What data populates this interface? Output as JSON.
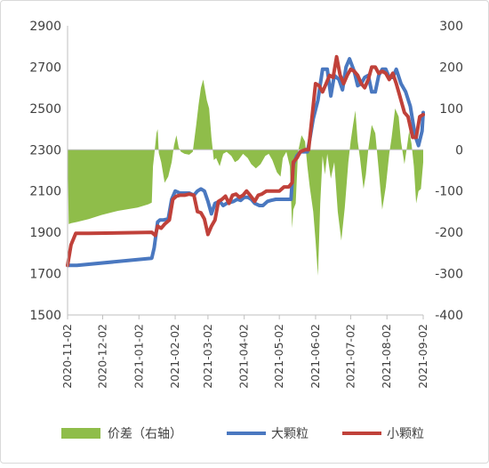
{
  "chart_data": {
    "type": "line",
    "title": "",
    "xlabel": "",
    "ylabel": "",
    "x_ticks": [
      "2020-11-02",
      "2020-12-02",
      "2021-01-02",
      "2021-02-02",
      "2021-03-02",
      "2021-04-02",
      "2021-05-02",
      "2021-06-02",
      "2021-07-02",
      "2021-08-02",
      "2021-09-02"
    ],
    "y_left": {
      "range": [
        1500,
        2900
      ],
      "ticks": [
        "1500",
        "1700",
        "1900",
        "2100",
        "2300",
        "2500",
        "2700",
        "2900"
      ]
    },
    "y_right": {
      "range": [
        -400,
        300
      ],
      "ticks": [
        "-400",
        "-300",
        "-200",
        "-100",
        "0",
        "100",
        "200",
        "300"
      ]
    },
    "grid": false,
    "legend_position": "bottom",
    "series": [
      {
        "name": "价差（右轴）",
        "type": "area",
        "axis": "right",
        "color": "#8fbd4a",
        "points": [
          [
            "2020-11-02",
            0
          ],
          [
            "2020-11-03",
            -180
          ],
          [
            "2020-11-05",
            -178
          ],
          [
            "2020-11-10",
            -175
          ],
          [
            "2020-11-20",
            -168
          ],
          [
            "2020-12-01",
            -158
          ],
          [
            "2020-12-15",
            -148
          ],
          [
            "2021-01-01",
            -140
          ],
          [
            "2021-01-10",
            -132
          ],
          [
            "2021-01-13",
            -128
          ],
          [
            "2021-01-14",
            -40
          ],
          [
            "2021-01-15",
            -15
          ],
          [
            "2021-01-17",
            40
          ],
          [
            "2021-01-18",
            50
          ],
          [
            "2021-01-19",
            -8
          ],
          [
            "2021-01-21",
            -30
          ],
          [
            "2021-01-24",
            -80
          ],
          [
            "2021-01-27",
            -65
          ],
          [
            "2021-01-30",
            -30
          ],
          [
            "2021-02-01",
            10
          ],
          [
            "2021-02-03",
            35
          ],
          [
            "2021-02-05",
            5
          ],
          [
            "2021-02-07",
            -5
          ],
          [
            "2021-02-10",
            -10
          ],
          [
            "2021-02-14",
            -12
          ],
          [
            "2021-02-17",
            -5
          ],
          [
            "2021-02-20",
            60
          ],
          [
            "2021-02-22",
            110
          ],
          [
            "2021-02-24",
            150
          ],
          [
            "2021-02-26",
            170
          ],
          [
            "2021-03-01",
            120
          ],
          [
            "2021-03-03",
            100
          ],
          [
            "2021-03-05",
            30
          ],
          [
            "2021-03-07",
            -25
          ],
          [
            "2021-03-09",
            -20
          ],
          [
            "2021-03-12",
            -40
          ],
          [
            "2021-03-15",
            -10
          ],
          [
            "2021-03-18",
            -5
          ],
          [
            "2021-03-22",
            -15
          ],
          [
            "2021-03-25",
            -30
          ],
          [
            "2021-03-28",
            -25
          ],
          [
            "2021-04-01",
            -10
          ],
          [
            "2021-04-05",
            -20
          ],
          [
            "2021-04-08",
            -35
          ],
          [
            "2021-04-12",
            -45
          ],
          [
            "2021-04-16",
            -35
          ],
          [
            "2021-04-20",
            -15
          ],
          [
            "2021-04-23",
            -10
          ],
          [
            "2021-04-26",
            -25
          ],
          [
            "2021-04-30",
            -55
          ],
          [
            "2021-05-03",
            -65
          ],
          [
            "2021-05-05",
            -20
          ],
          [
            "2021-05-08",
            -5
          ],
          [
            "2021-05-11",
            -40
          ],
          [
            "2021-05-13",
            -190
          ],
          [
            "2021-05-14",
            -145
          ],
          [
            "2021-05-16",
            -130
          ],
          [
            "2021-05-18",
            -5
          ],
          [
            "2021-05-21",
            35
          ],
          [
            "2021-05-24",
            20
          ],
          [
            "2021-05-26",
            -40
          ],
          [
            "2021-05-28",
            -90
          ],
          [
            "2021-05-31",
            -150
          ],
          [
            "2021-06-02",
            -220
          ],
          [
            "2021-06-04",
            -305
          ],
          [
            "2021-06-06",
            -130
          ],
          [
            "2021-06-08",
            -15
          ],
          [
            "2021-06-10",
            -60
          ],
          [
            "2021-06-12",
            -10
          ],
          [
            "2021-06-15",
            -70
          ],
          [
            "2021-06-18",
            -30
          ],
          [
            "2021-06-21",
            -150
          ],
          [
            "2021-06-24",
            -220
          ],
          [
            "2021-06-27",
            -140
          ],
          [
            "2021-06-30",
            -30
          ],
          [
            "2021-07-02",
            20
          ],
          [
            "2021-07-04",
            60
          ],
          [
            "2021-07-06",
            95
          ],
          [
            "2021-07-08",
            20
          ],
          [
            "2021-07-10",
            -20
          ],
          [
            "2021-07-13",
            -95
          ],
          [
            "2021-07-15",
            -60
          ],
          [
            "2021-07-17",
            0
          ],
          [
            "2021-07-20",
            60
          ],
          [
            "2021-07-23",
            40
          ],
          [
            "2021-07-26",
            -50
          ],
          [
            "2021-07-29",
            -145
          ],
          [
            "2021-08-01",
            -90
          ],
          [
            "2021-08-04",
            -10
          ],
          [
            "2021-08-06",
            30
          ],
          [
            "2021-08-09",
            100
          ],
          [
            "2021-08-12",
            80
          ],
          [
            "2021-08-14",
            20
          ],
          [
            "2021-08-17",
            -35
          ],
          [
            "2021-08-19",
            5
          ],
          [
            "2021-08-21",
            45
          ],
          [
            "2021-08-23",
            15
          ],
          [
            "2021-08-25",
            -40
          ],
          [
            "2021-08-27",
            -130
          ],
          [
            "2021-08-29",
            -100
          ],
          [
            "2021-08-31",
            -95
          ],
          [
            "2021-09-02",
            -30
          ]
        ]
      },
      {
        "name": "大颗粒",
        "type": "line",
        "axis": "left",
        "color": "#4a78c0",
        "points": [
          [
            "2020-11-02",
            1740
          ],
          [
            "2020-11-10",
            1740
          ],
          [
            "2021-01-13",
            1775
          ],
          [
            "2021-01-15",
            1825
          ],
          [
            "2021-01-18",
            1950
          ],
          [
            "2021-01-20",
            1960
          ],
          [
            "2021-01-23",
            1960
          ],
          [
            "2021-01-27",
            1965
          ],
          [
            "2021-01-30",
            2060
          ],
          [
            "2021-02-02",
            2100
          ],
          [
            "2021-02-06",
            2090
          ],
          [
            "2021-02-10",
            2090
          ],
          [
            "2021-02-14",
            2090
          ],
          [
            "2021-02-18",
            2080
          ],
          [
            "2021-02-21",
            2100
          ],
          [
            "2021-02-24",
            2110
          ],
          [
            "2021-02-27",
            2100
          ],
          [
            "2021-03-02",
            2050
          ],
          [
            "2021-03-05",
            1990
          ],
          [
            "2021-03-08",
            2040
          ],
          [
            "2021-03-12",
            2050
          ],
          [
            "2021-03-15",
            2030
          ],
          [
            "2021-03-18",
            2040
          ],
          [
            "2021-03-21",
            2045
          ],
          [
            "2021-03-24",
            2050
          ],
          [
            "2021-03-27",
            2060
          ],
          [
            "2021-03-30",
            2055
          ],
          [
            "2021-04-02",
            2070
          ],
          [
            "2021-04-05",
            2070
          ],
          [
            "2021-04-08",
            2060
          ],
          [
            "2021-04-11",
            2040
          ],
          [
            "2021-04-15",
            2030
          ],
          [
            "2021-04-18",
            2030
          ],
          [
            "2021-04-22",
            2050
          ],
          [
            "2021-04-25",
            2055
          ],
          [
            "2021-04-29",
            2060
          ],
          [
            "2021-05-02",
            2060
          ],
          [
            "2021-05-06",
            2060
          ],
          [
            "2021-05-09",
            2060
          ],
          [
            "2021-05-12",
            2060
          ],
          [
            "2021-05-14",
            2230
          ],
          [
            "2021-05-17",
            2270
          ],
          [
            "2021-05-20",
            2290
          ],
          [
            "2021-05-24",
            2290
          ],
          [
            "2021-05-26",
            2290
          ],
          [
            "2021-05-28",
            2350
          ],
          [
            "2021-05-31",
            2450
          ],
          [
            "2021-06-04",
            2540
          ],
          [
            "2021-06-08",
            2690
          ],
          [
            "2021-06-12",
            2690
          ],
          [
            "2021-06-15",
            2560
          ],
          [
            "2021-06-18",
            2660
          ],
          [
            "2021-06-22",
            2640
          ],
          [
            "2021-06-25",
            2590
          ],
          [
            "2021-06-28",
            2700
          ],
          [
            "2021-07-01",
            2740
          ],
          [
            "2021-07-05",
            2680
          ],
          [
            "2021-07-08",
            2610
          ],
          [
            "2021-07-11",
            2620
          ],
          [
            "2021-07-14",
            2650
          ],
          [
            "2021-07-17",
            2660
          ],
          [
            "2021-07-20",
            2580
          ],
          [
            "2021-07-23",
            2580
          ],
          [
            "2021-07-26",
            2660
          ],
          [
            "2021-07-29",
            2690
          ],
          [
            "2021-08-01",
            2690
          ],
          [
            "2021-08-04",
            2650
          ],
          [
            "2021-08-07",
            2650
          ],
          [
            "2021-08-10",
            2690
          ],
          [
            "2021-08-14",
            2620
          ],
          [
            "2021-08-18",
            2580
          ],
          [
            "2021-08-22",
            2510
          ],
          [
            "2021-08-26",
            2370
          ],
          [
            "2021-08-29",
            2320
          ],
          [
            "2021-09-01",
            2390
          ],
          [
            "2021-09-02",
            2480
          ]
        ]
      },
      {
        "name": "小颗粒",
        "type": "line",
        "axis": "left",
        "color": "#c0413a",
        "points": [
          [
            "2020-11-02",
            1740
          ],
          [
            "2020-11-05",
            1840
          ],
          [
            "2020-11-09",
            1895
          ],
          [
            "2020-11-20",
            1895
          ],
          [
            "2021-01-13",
            1900
          ],
          [
            "2021-01-16",
            1885
          ],
          [
            "2021-01-18",
            1930
          ],
          [
            "2021-01-21",
            1920
          ],
          [
            "2021-01-24",
            1940
          ],
          [
            "2021-01-28",
            1960
          ],
          [
            "2021-01-31",
            2060
          ],
          [
            "2021-02-03",
            2075
          ],
          [
            "2021-02-06",
            2080
          ],
          [
            "2021-02-10",
            2080
          ],
          [
            "2021-02-14",
            2085
          ],
          [
            "2021-02-18",
            2080
          ],
          [
            "2021-02-21",
            2000
          ],
          [
            "2021-02-24",
            1995
          ],
          [
            "2021-02-27",
            1965
          ],
          [
            "2021-03-02",
            1890
          ],
          [
            "2021-03-05",
            1930
          ],
          [
            "2021-03-08",
            1960
          ],
          [
            "2021-03-11",
            2050
          ],
          [
            "2021-03-14",
            2060
          ],
          [
            "2021-03-17",
            2075
          ],
          [
            "2021-03-20",
            2040
          ],
          [
            "2021-03-23",
            2080
          ],
          [
            "2021-03-26",
            2085
          ],
          [
            "2021-03-29",
            2070
          ],
          [
            "2021-04-01",
            2080
          ],
          [
            "2021-04-04",
            2100
          ],
          [
            "2021-04-07",
            2080
          ],
          [
            "2021-04-11",
            2050
          ],
          [
            "2021-04-14",
            2080
          ],
          [
            "2021-04-17",
            2085
          ],
          [
            "2021-04-21",
            2100
          ],
          [
            "2021-04-25",
            2100
          ],
          [
            "2021-04-29",
            2100
          ],
          [
            "2021-05-02",
            2100
          ],
          [
            "2021-05-06",
            2120
          ],
          [
            "2021-05-10",
            2120
          ],
          [
            "2021-05-13",
            2140
          ],
          [
            "2021-05-14",
            2240
          ],
          [
            "2021-05-17",
            2260
          ],
          [
            "2021-05-20",
            2290
          ],
          [
            "2021-05-24",
            2300
          ],
          [
            "2021-05-27",
            2300
          ],
          [
            "2021-05-30",
            2460
          ],
          [
            "2021-06-02",
            2620
          ],
          [
            "2021-06-05",
            2610
          ],
          [
            "2021-06-08",
            2580
          ],
          [
            "2021-06-11",
            2620
          ],
          [
            "2021-06-14",
            2660
          ],
          [
            "2021-06-17",
            2650
          ],
          [
            "2021-06-20",
            2750
          ],
          [
            "2021-06-23",
            2660
          ],
          [
            "2021-06-26",
            2620
          ],
          [
            "2021-06-29",
            2660
          ],
          [
            "2021-07-02",
            2690
          ],
          [
            "2021-07-05",
            2680
          ],
          [
            "2021-07-08",
            2660
          ],
          [
            "2021-07-11",
            2620
          ],
          [
            "2021-07-14",
            2600
          ],
          [
            "2021-07-17",
            2640
          ],
          [
            "2021-07-20",
            2700
          ],
          [
            "2021-07-23",
            2700
          ],
          [
            "2021-07-26",
            2670
          ],
          [
            "2021-07-29",
            2680
          ],
          [
            "2021-08-01",
            2670
          ],
          [
            "2021-08-04",
            2640
          ],
          [
            "2021-08-07",
            2670
          ],
          [
            "2021-08-10",
            2620
          ],
          [
            "2021-08-13",
            2560
          ],
          [
            "2021-08-17",
            2480
          ],
          [
            "2021-08-20",
            2460
          ],
          [
            "2021-08-24",
            2360
          ],
          [
            "2021-08-27",
            2360
          ],
          [
            "2021-08-30",
            2460
          ],
          [
            "2021-09-02",
            2470
          ]
        ]
      }
    ]
  }
}
